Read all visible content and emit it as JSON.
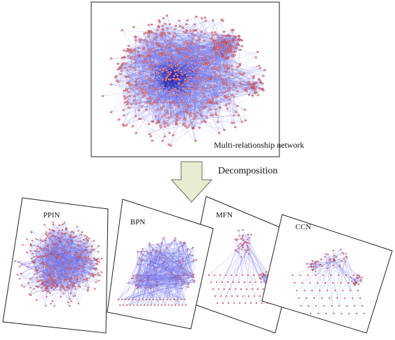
{
  "main_network": {
    "caption": "Multi-relationship network"
  },
  "decomposition": {
    "label": "Decomposition"
  },
  "sub_networks": [
    {
      "label": "PPIN"
    },
    {
      "label": "BPN"
    },
    {
      "label": "MFN"
    },
    {
      "label": "CCN"
    }
  ],
  "colors": {
    "node_fill": "#e8a0a8",
    "node_stroke": "#b0303c",
    "edge": "#6a6ae8",
    "dense_edge": "#1c1ca8",
    "arrow_fill": "#e8ecd0",
    "arrow_stroke": "#6a7060"
  }
}
